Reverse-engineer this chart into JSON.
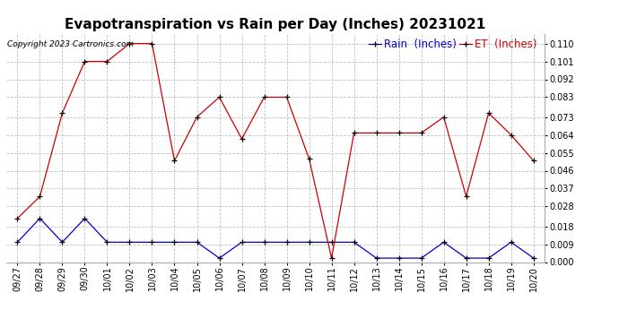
{
  "title": "Evapotranspiration vs Rain per Day (Inches) 20231021",
  "copyright": "Copyright 2023 Cartronics.com",
  "legend_rain": "Rain  (Inches)",
  "legend_et": "ET  (Inches)",
  "dates": [
    "09/27",
    "09/28",
    "09/29",
    "09/30",
    "10/01",
    "10/02",
    "10/03",
    "10/04",
    "10/05",
    "10/06",
    "10/07",
    "10/08",
    "10/09",
    "10/10",
    "10/11",
    "10/12",
    "10/13",
    "10/14",
    "10/15",
    "10/16",
    "10/17",
    "10/18",
    "10/19",
    "10/20"
  ],
  "et_values": [
    0.022,
    0.033,
    0.075,
    0.101,
    0.101,
    0.11,
    0.11,
    0.051,
    0.073,
    0.083,
    0.062,
    0.083,
    0.083,
    0.052,
    0.002,
    0.065,
    0.065,
    0.065,
    0.065,
    0.073,
    0.033,
    0.075,
    0.064,
    0.051
  ],
  "rain_values": [
    0.01,
    0.022,
    0.01,
    0.022,
    0.01,
    0.01,
    0.01,
    0.01,
    0.01,
    0.002,
    0.01,
    0.01,
    0.01,
    0.01,
    0.01,
    0.01,
    0.002,
    0.002,
    0.002,
    0.01,
    0.002,
    0.002,
    0.01,
    0.002
  ],
  "ylim": [
    0.0,
    0.115
  ],
  "yticks": [
    0.0,
    0.009,
    0.018,
    0.028,
    0.037,
    0.046,
    0.055,
    0.064,
    0.073,
    0.083,
    0.092,
    0.101,
    0.11
  ],
  "background_color": "#ffffff",
  "grid_color": "#c0c0c0",
  "rain_color": "#0000cc",
  "et_color": "#cc0000",
  "marker_color": "#000000",
  "title_fontsize": 11,
  "tick_fontsize": 7,
  "legend_fontsize": 8.5,
  "copyright_fontsize": 6.5,
  "fig_width": 6.9,
  "fig_height": 3.75,
  "dpi": 100
}
